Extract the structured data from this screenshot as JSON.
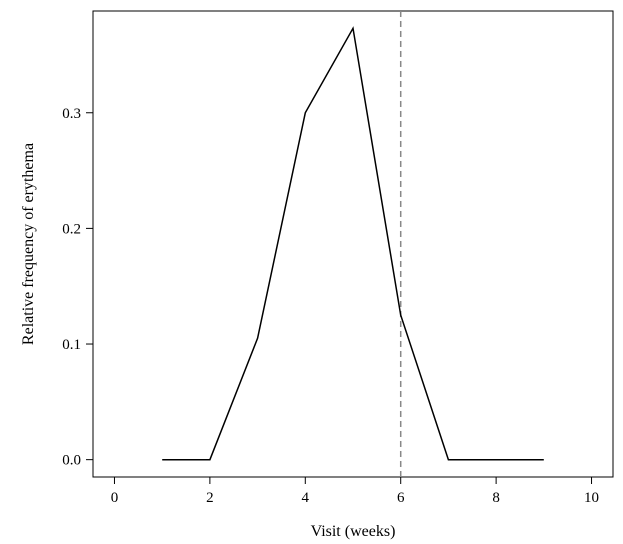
{
  "chart_data": {
    "type": "line",
    "title": "",
    "xlabel": "Visit (weeks)",
    "ylabel": "Relative frequency of erythema",
    "xlim": [
      -0.45,
      10.45
    ],
    "ylim": [
      -0.015,
      0.388
    ],
    "x_ticks": [
      0,
      2,
      4,
      6,
      8,
      10
    ],
    "y_ticks": [
      0.0,
      0.1,
      0.2,
      0.3
    ],
    "x_tick_labels": [
      "0",
      "2",
      "4",
      "6",
      "8",
      "10"
    ],
    "y_tick_labels": [
      "0.0",
      "0.1",
      "0.2",
      "0.3"
    ],
    "grid": false,
    "series": [
      {
        "x": [
          1,
          2,
          3,
          4,
          5,
          6,
          7,
          8,
          9
        ],
        "y": [
          0.0,
          0.0,
          0.105,
          0.3,
          0.373,
          0.125,
          0.0,
          0.0,
          0.0
        ],
        "color": "#000000",
        "line_style": "solid"
      }
    ],
    "reference_lines": [
      {
        "orientation": "vertical",
        "x": 6,
        "color": "#888888",
        "line_style": "dashed"
      }
    ]
  }
}
